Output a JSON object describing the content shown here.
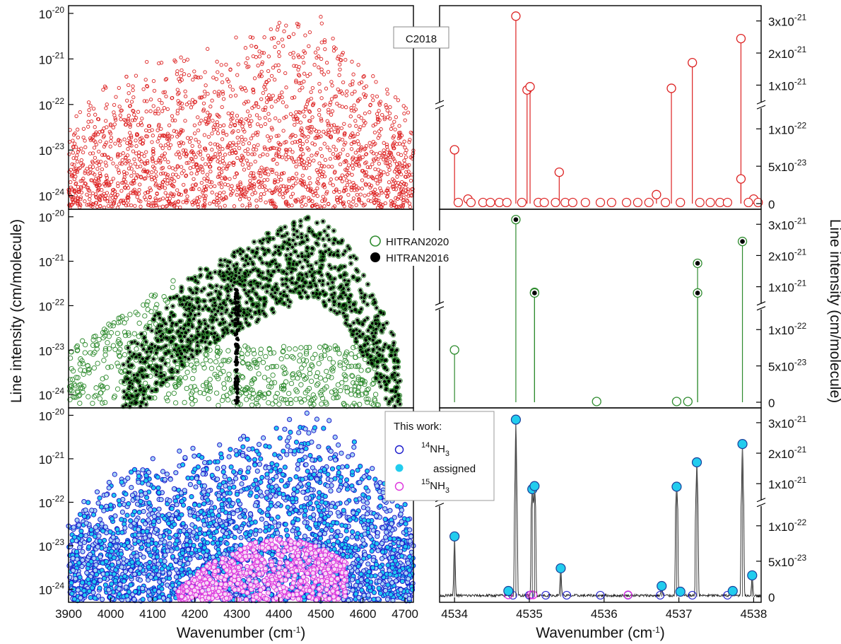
{
  "chart_data": [
    {
      "type": "scatter",
      "panel": "overview-c2018",
      "label": "C2018",
      "x_range_cm-1": [
        3900,
        4720
      ],
      "y_scale": "log",
      "y_range": [
        5e-25,
        1.5e-20
      ],
      "y_ticks": [
        "10-20",
        "10-21",
        "10-22",
        "10-23",
        "10-24"
      ],
      "series": [
        {
          "marker": "open-circle",
          "color": "#dd2222",
          "envelope": [
            [
              3905,
              5e-23
            ],
            [
              3960,
              2e-22
            ],
            [
              4060,
              1e-21
            ],
            [
              4200,
              2e-21
            ],
            [
              4300,
              4e-21
            ],
            [
              4380,
              7e-21
            ],
            [
              4480,
              1.3e-20
            ],
            [
              4560,
              5e-21
            ],
            [
              4620,
              8e-22
            ],
            [
              4680,
              2e-22
            ],
            [
              4715,
              8e-23
            ]
          ]
        }
      ]
    },
    {
      "type": "scatter",
      "panel": "overview-hitran",
      "x_range_cm-1": [
        3900,
        4720
      ],
      "y_scale": "log",
      "y_range": [
        5e-25,
        1.5e-20
      ],
      "y_ticks": [
        "10-20",
        "10-21",
        "10-22",
        "10-23",
        "10-24"
      ],
      "series": [
        {
          "name": "HITRAN2020",
          "marker": "open-circle",
          "color": "#2e8b2e"
        },
        {
          "name": "HITRAN2016",
          "marker": "filled-circle",
          "color": "#000000",
          "envelope": [
            [
              4030,
              1e-23
            ],
            [
              4120,
              1e-22
            ],
            [
              4200,
              6e-22
            ],
            [
              4300,
              2e-21
            ],
            [
              4380,
              5e-21
            ],
            [
              4480,
              1.3e-20
            ],
            [
              4560,
              3e-21
            ],
            [
              4650,
              8e-23
            ],
            [
              4690,
              1e-23
            ]
          ]
        }
      ]
    },
    {
      "type": "scatter",
      "panel": "overview-this-work",
      "x_range_cm-1": [
        3900,
        4720
      ],
      "y_scale": "log",
      "y_range": [
        5e-25,
        1.5e-20
      ],
      "y_ticks": [
        "10-20",
        "10-21",
        "10-22",
        "10-23",
        "10-24"
      ],
      "xticks": [
        "3900",
        "4000",
        "4100",
        "4200",
        "4300",
        "4400",
        "4500",
        "4600",
        "4700"
      ],
      "xlabel": "Wavenumber (cm-1)",
      "ylabel": "Line intensity (cm/molecule)",
      "legend_title": "This work:",
      "series": [
        {
          "name": "14NH3",
          "marker": "open-circle",
          "color": "#1a1acc"
        },
        {
          "name": "assigned",
          "marker": "filled-circle",
          "color": "#22ccee"
        },
        {
          "name": "15NH3",
          "marker": "open-circle",
          "color": "#dd33dd"
        }
      ]
    },
    {
      "type": "stem",
      "panel": "zoom-c2018",
      "x_range_cm-1": [
        4533.8,
        4538.1
      ],
      "y_scale": "broken-linear",
      "y_lower": {
        "range": [
          0,
          1.2e-22
        ],
        "ticks": [
          "0",
          "5x10-23",
          "1x10-22"
        ]
      },
      "y_upper": {
        "range": [
          5e-22,
          3.3e-21
        ],
        "ticks": [
          "1x10-21",
          "2x10-21",
          "3x10-21"
        ]
      },
      "color": "#dd2222",
      "lines": [
        {
          "x": 4534.0,
          "y": 7.2e-23
        },
        {
          "x": 4534.82,
          "y": 3.15e-21
        },
        {
          "x": 4534.97,
          "y": 8.5e-22
        },
        {
          "x": 4535.01,
          "y": 9.5e-22
        },
        {
          "x": 4535.4,
          "y": 4.2e-23
        },
        {
          "x": 4536.9,
          "y": 9e-22
        },
        {
          "x": 4537.18,
          "y": 1.7e-21
        },
        {
          "x": 4537.83,
          "y": 2.45e-21
        },
        {
          "x": 4537.83,
          "y": 3.3e-23
        },
        {
          "x": 4536.7,
          "y": 1.2e-23
        },
        {
          "x": 4534.18,
          "y": 6e-24
        },
        {
          "x": 4538.0,
          "y": 6e-24
        }
      ],
      "note": "y2ticks shared with the other zoom panels"
    },
    {
      "type": "stem",
      "panel": "zoom-hitran",
      "x_range_cm-1": [
        4533.8,
        4538.1
      ],
      "y_scale": "broken-linear",
      "y_lower": {
        "range": [
          0,
          1.2e-22
        ],
        "ticks": [
          "0",
          "5x10-23",
          "1x10-22"
        ]
      },
      "y_upper": {
        "range": [
          5e-22,
          3.3e-21
        ],
        "ticks": [
          "1x10-21",
          "2x10-21",
          "3x10-21"
        ]
      },
      "color": "#2e8b2e",
      "lines": [
        {
          "x": 4534.0,
          "y": 7.2e-23,
          "hitran2016": false
        },
        {
          "x": 4534.82,
          "y": 3.15e-21,
          "hitran2016": true
        },
        {
          "x": 4535.07,
          "y": 8.2e-22,
          "hitran2016": true
        },
        {
          "x": 4535.07,
          "y": 8e-22,
          "hitran2016": true
        },
        {
          "x": 4537.25,
          "y": 1.75e-21,
          "hitran2016": true
        },
        {
          "x": 4537.25,
          "y": 8e-22,
          "hitran2016": true
        },
        {
          "x": 4537.85,
          "y": 2.45e-21,
          "hitran2016": true
        },
        {
          "x": 4535.9,
          "y": 1e-24,
          "hitran2016": false
        },
        {
          "x": 4536.97,
          "y": 1e-24,
          "hitran2016": false
        },
        {
          "x": 4537.12,
          "y": 1e-24,
          "hitran2016": false
        }
      ]
    },
    {
      "type": "stem",
      "panel": "zoom-this-work",
      "x_range_cm-1": [
        4533.8,
        4538.1
      ],
      "xticks": [
        "4534",
        "4535",
        "4536",
        "4537",
        "4538"
      ],
      "xlabel": "Wavenumber (cm-1)",
      "y2label": "Line intensity (cm/molecule)",
      "y_scale": "broken-linear",
      "y_lower": {
        "range": [
          0,
          1.2e-22
        ],
        "ticks": [
          "0",
          "5x10-23",
          "1x10-22"
        ]
      },
      "y_upper": {
        "range": [
          5e-22,
          3.3e-21
        ],
        "ticks": [
          "1x10-21",
          "2x10-21",
          "3x10-21"
        ]
      },
      "color": "#22ccee",
      "lines": [
        {
          "x": 4534.0,
          "y": 8.5e-23
        },
        {
          "x": 4534.72,
          "y": 8e-24
        },
        {
          "x": 4534.82,
          "y": 3.1e-21
        },
        {
          "x": 4535.04,
          "y": 8.2e-22
        },
        {
          "x": 4535.07,
          "y": 9.2e-22
        },
        {
          "x": 4535.42,
          "y": 4e-23
        },
        {
          "x": 4536.77,
          "y": 1.5e-23
        },
        {
          "x": 4536.97,
          "y": 9e-22
        },
        {
          "x": 4537.24,
          "y": 1.7e-21
        },
        {
          "x": 4537.85,
          "y": 2.3e-21
        },
        {
          "x": 4537.98,
          "y": 3e-23
        },
        {
          "x": 4537.72,
          "y": 8e-24
        },
        {
          "x": 4537.02,
          "y": 7e-24
        }
      ]
    }
  ]
}
